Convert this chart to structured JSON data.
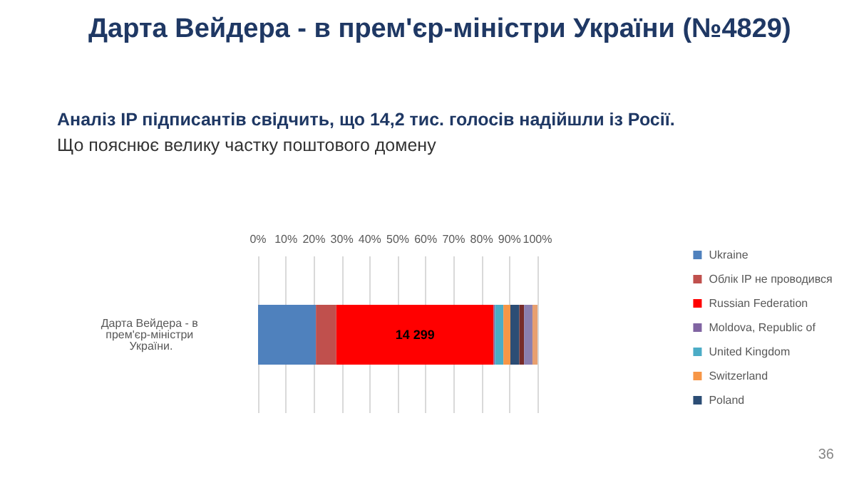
{
  "chart_data": {
    "type": "bar",
    "orientation": "horizontal",
    "stacked": true,
    "title": "Дарта Вейдера - в прем'єр-міністри України (№4829)",
    "subtitle": "Аналіз IP підписантів свідчить, що 14,2 тис. голосів надійшли із Росії.",
    "annotations": [
      "Що пояснює велику частку поштового домену",
      "36",
      {
        "text": "14 299",
        "x": 56.2,
        "y": "Дарта Вейдера - в прем'єр-міністри України."
      }
    ],
    "categories": [
      "Дарта Вейдера - в прем'єр-міністри України."
    ],
    "series": [
      {
        "name": "Ukraine",
        "color": "#4f81bd",
        "values": [
          20.7
        ]
      },
      {
        "name": "Облік IP не проводився",
        "color": "#c0504d",
        "values": [
          7.3
        ]
      },
      {
        "name": "Russian Federation",
        "color": "#ff0000",
        "values": [
          56.3
        ]
      },
      {
        "name": "Moldova, Republic of",
        "color": "#8064a2",
        "values": [
          0.5
        ]
      },
      {
        "name": "United Kingdom",
        "color": "#4bacc6",
        "values": [
          3
        ]
      },
      {
        "name": "Switzerland",
        "color": "#f79646",
        "values": [
          2.5
        ]
      },
      {
        "name": "Poland",
        "color": "#2c4d75",
        "values": [
          3.2
        ]
      },
      {
        "color": "#772c2a",
        "values": [
          1.7
        ]
      },
      {
        "color": "#8a7fb0",
        "values": [
          3
        ]
      },
      {
        "color": "#e8a070",
        "values": [
          1.8
        ]
      }
    ],
    "xlim": [
      0,
      100
    ],
    "xticks": [
      {
        "value": 0,
        "label": "0%"
      },
      {
        "value": 10,
        "label": "10%"
      },
      {
        "value": 20,
        "label": "20%"
      },
      {
        "value": 30,
        "label": "30%"
      },
      {
        "value": 40,
        "label": "40%"
      },
      {
        "value": 50,
        "label": "50%"
      },
      {
        "value": 60,
        "label": "60%"
      },
      {
        "value": 70,
        "label": "70%"
      },
      {
        "value": 80,
        "label": "80%"
      },
      {
        "value": 90,
        "label": "90%"
      },
      {
        "value": 100,
        "label": "100%"
      }
    ],
    "grid": "x",
    "legend": "right"
  }
}
